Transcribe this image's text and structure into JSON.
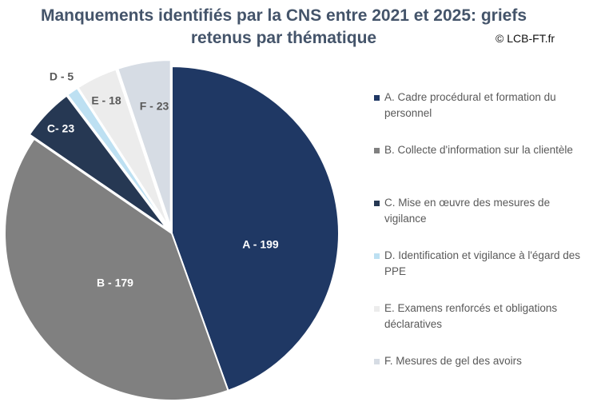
{
  "chart_data": {
    "type": "pie",
    "title_lines": [
      "Manquements identifiés par la CNS entre 2021 et 2025: griefs",
      "retenus par thématique"
    ],
    "credit": "© LCB-FT.fr",
    "legend_position": "right",
    "slices": [
      {
        "id": "A",
        "legend": "A. Cadre procédural et formation du personnel",
        "value": 199,
        "label": "A - 199",
        "color": "#1f3864",
        "label_color": "#ffffff"
      },
      {
        "id": "B",
        "legend": "B. Collecte d'information sur la clientèle",
        "value": 179,
        "label": "B - 179",
        "color": "#808080",
        "label_color": "#ffffff"
      },
      {
        "id": "C",
        "legend": "C. Mise en œuvre des mesures de vigilance",
        "value": 23,
        "label": "C- 23",
        "color": "#263853",
        "label_color": "#ffffff"
      },
      {
        "id": "D",
        "legend": "D. Identification et vigilance à l'égard des PPE",
        "value": 5,
        "label": "D - 5",
        "color": "#bde0f2",
        "label_color": "#595959"
      },
      {
        "id": "E",
        "legend": "E. Examens renforcés et obligations déclaratives",
        "value": 18,
        "label": "E - 18",
        "color": "#ececec",
        "label_color": "#595959"
      },
      {
        "id": "F",
        "legend": "F. Mesures de gel des avoirs",
        "value": 23,
        "label": "F - 23",
        "color": "#d6dce4",
        "label_color": "#595959"
      }
    ]
  }
}
